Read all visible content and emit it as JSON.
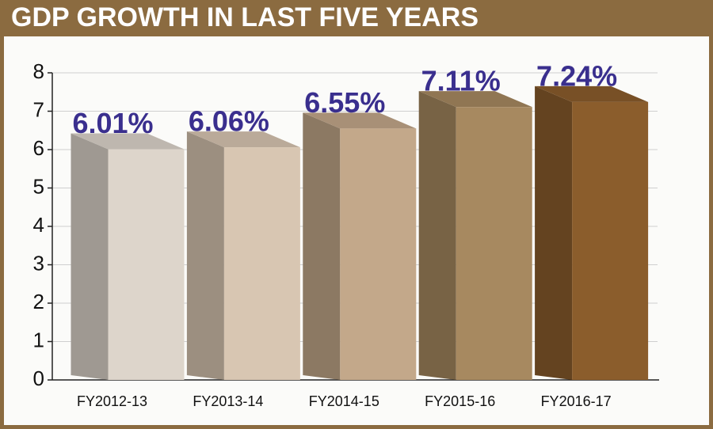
{
  "chart_data": {
    "type": "bar3d",
    "title": "GDP GROWTH IN LAST FIVE YEARS",
    "categories": [
      "FY2012-13",
      "FY2013-14",
      "FY2014-15",
      "FY2015-16",
      "FY2016-17"
    ],
    "values": [
      6.01,
      6.06,
      6.55,
      7.11,
      7.24
    ],
    "value_labels": [
      "6.01%",
      "6.06%",
      "6.55%",
      "7.11%",
      "7.24%"
    ],
    "colors": [
      "#ddd5cb",
      "#d8c6b2",
      "#c3a88a",
      "#a78960",
      "#8b5d2c"
    ],
    "label_color": "#3a2f8e",
    "ylim": [
      0,
      8
    ],
    "yticks": [
      0,
      1,
      2,
      3,
      4,
      5,
      6,
      7,
      8
    ],
    "grid": true
  }
}
